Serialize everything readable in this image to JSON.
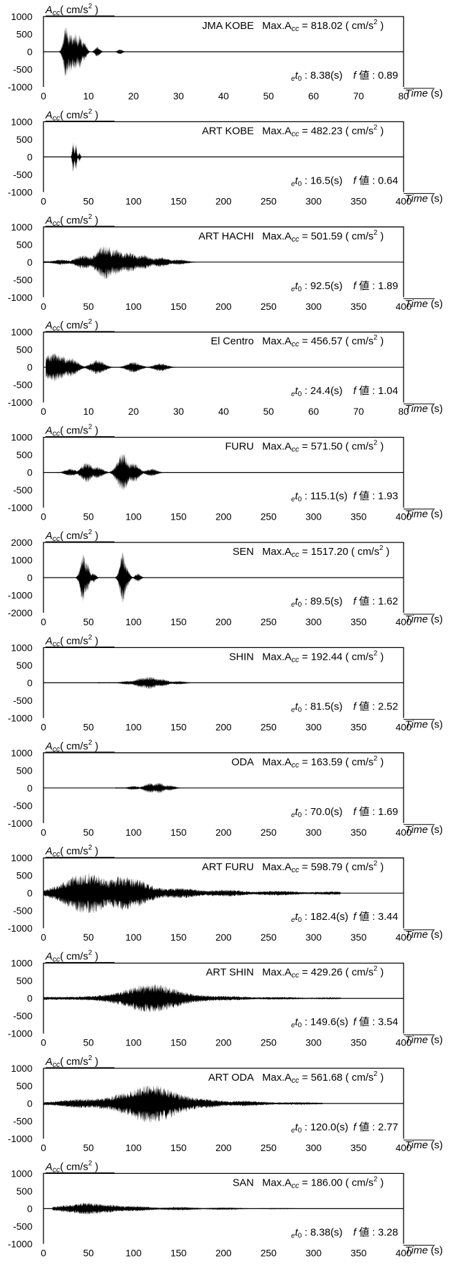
{
  "chart_data": [
    {
      "type": "line",
      "station": "JMA KOBE",
      "max_acc": "818.02",
      "e_t0": "8.38",
      "f_value": "0.89",
      "xlim": [
        0,
        80
      ],
      "ylim": [
        -1000,
        1000
      ],
      "xticks": [
        0,
        10,
        20,
        30,
        40,
        50,
        60,
        70,
        80
      ],
      "yticks": [
        1000,
        500,
        0,
        -500,
        -1000
      ],
      "ylabel_a": "A",
      "ylabel_cc": "cc",
      "ylabel_unit": "( cm/s",
      "unit_exp": "2",
      "unit_close": " )",
      "xlabel_time": "Time",
      "xlabel_unit": "(s)",
      "max_prefix": "Max.A",
      "max_eq": " = ",
      "f_label": "f",
      "f_kanji": "値",
      "t0_e": "e",
      "t0_t": "t",
      "t0_sub": "0",
      "t0_colon": " : ",
      "s_unit": "(s)",
      "envelope": {
        "start": 3.5,
        "end": 22,
        "peaks": [
          [
            5,
            780
          ],
          [
            6,
            600
          ],
          [
            7,
            550
          ],
          [
            8,
            500
          ],
          [
            9,
            300
          ],
          [
            12,
            150
          ],
          [
            17,
            80
          ]
        ],
        "sigma": 0.12,
        "floor": 0.02
      }
    },
    {
      "type": "line",
      "station": "ART KOBE",
      "max_acc": "482.23",
      "e_t0": "16.5",
      "f_value": "0.64",
      "xlim": [
        0,
        400
      ],
      "ylim": [
        -1000,
        1000
      ],
      "xticks": [
        0,
        50,
        100,
        150,
        200,
        250,
        300,
        350,
        400
      ],
      "yticks": [
        1000,
        500,
        0,
        -500,
        -1000
      ],
      "ylabel_a": "A",
      "ylabel_cc": "cc",
      "ylabel_unit": "( cm/s",
      "unit_exp": "2",
      "unit_close": " )",
      "xlabel_time": "Time",
      "xlabel_unit": "(s)",
      "max_prefix": "Max.A",
      "max_eq": " = ",
      "f_label": "f",
      "f_kanji": "値",
      "t0_e": "e",
      "t0_t": "t",
      "t0_sub": "0",
      "t0_colon": " : ",
      "s_unit": "(s)",
      "envelope": {
        "start": 20,
        "end": 70,
        "peaks": [
          [
            33,
            480
          ],
          [
            36,
            400
          ],
          [
            40,
            150
          ]
        ],
        "sigma": 0.08,
        "floor": 0.01
      }
    },
    {
      "type": "line",
      "station": "ART HACHI",
      "max_acc": "501.59",
      "e_t0": "92.5",
      "f_value": "1.89",
      "xlim": [
        0,
        400
      ],
      "ylim": [
        -1000,
        1000
      ],
      "xticks": [
        0,
        50,
        100,
        150,
        200,
        250,
        300,
        350,
        400
      ],
      "yticks": [
        1000,
        500,
        0,
        -500,
        -1000
      ],
      "ylabel_a": "A",
      "ylabel_cc": "cc",
      "ylabel_unit": "( cm/s",
      "unit_exp": "2",
      "unit_close": " )",
      "xlabel_time": "Time",
      "xlabel_unit": "(s)",
      "max_prefix": "Max.A",
      "max_eq": " = ",
      "f_label": "f",
      "f_kanji": "値",
      "t0_e": "e",
      "t0_t": "t",
      "t0_sub": "0",
      "t0_colon": " : ",
      "s_unit": "(s)",
      "envelope": {
        "start": 0,
        "end": 170,
        "peaks": [
          [
            20,
            80
          ],
          [
            45,
            200
          ],
          [
            68,
            500
          ],
          [
            80,
            380
          ],
          [
            95,
            300
          ],
          [
            110,
            220
          ],
          [
            130,
            150
          ],
          [
            150,
            80
          ]
        ],
        "sigma": 0.22,
        "floor": 0.05
      }
    },
    {
      "type": "line",
      "station": "El Centro",
      "max_acc": "456.57",
      "e_t0": "24.4",
      "f_value": "1.04",
      "xlim": [
        0,
        80
      ],
      "ylim": [
        -1000,
        1000
      ],
      "xticks": [
        0,
        10,
        20,
        30,
        40,
        50,
        60,
        70,
        80
      ],
      "yticks": [
        1000,
        500,
        0,
        -500,
        -1000
      ],
      "ylabel_a": "A",
      "ylabel_cc": "cc",
      "ylabel_unit": "( cm/s",
      "unit_exp": "2",
      "unit_close": " )",
      "xlabel_time": "Time",
      "xlabel_unit": "(s)",
      "max_prefix": "Max.A",
      "max_eq": " = ",
      "f_label": "f",
      "f_kanji": "値",
      "t0_e": "e",
      "t0_t": "t",
      "t0_sub": "0",
      "t0_colon": " : ",
      "s_unit": "(s)",
      "envelope": {
        "start": 0.5,
        "end": 33,
        "peaks": [
          [
            1.5,
            400
          ],
          [
            2.5,
            450
          ],
          [
            4,
            330
          ],
          [
            6,
            300
          ],
          [
            12,
            220
          ],
          [
            20,
            160
          ],
          [
            26,
            120
          ]
        ],
        "sigma": 0.18,
        "floor": 0.03
      }
    },
    {
      "type": "line",
      "station": "FURU",
      "max_acc": "571.50",
      "e_t0": "115.1",
      "f_value": "1.93",
      "xlim": [
        0,
        400
      ],
      "ylim": [
        -1000,
        1000
      ],
      "xticks": [
        0,
        50,
        100,
        150,
        200,
        250,
        300,
        350,
        400
      ],
      "yticks": [
        1000,
        500,
        0,
        -500,
        -1000
      ],
      "ylabel_a": "A",
      "ylabel_cc": "cc",
      "ylabel_unit": "( cm/s",
      "unit_exp": "2",
      "unit_close": " )",
      "xlabel_time": "Time",
      "xlabel_unit": "(s)",
      "max_prefix": "Max.A",
      "max_eq": " = ",
      "f_label": "f",
      "f_kanji": "値",
      "t0_e": "e",
      "t0_t": "t",
      "t0_sub": "0",
      "t0_colon": " : ",
      "s_unit": "(s)",
      "envelope": {
        "start": 15,
        "end": 145,
        "peaks": [
          [
            30,
            120
          ],
          [
            48,
            300
          ],
          [
            60,
            180
          ],
          [
            88,
            570
          ],
          [
            100,
            300
          ],
          [
            120,
            120
          ]
        ],
        "sigma": 0.18,
        "floor": 0.03
      }
    },
    {
      "type": "line",
      "station": "SEN",
      "max_acc": "1517.20",
      "e_t0": "89.5",
      "f_value": "1.62",
      "xlim": [
        0,
        400
      ],
      "ylim": [
        -2000,
        2000
      ],
      "xticks": [
        0,
        50,
        100,
        150,
        200,
        250,
        300,
        350,
        400
      ],
      "yticks": [
        2000,
        1000,
        0,
        -1000,
        -2000
      ],
      "ylabel_a": "A",
      "ylabel_cc": "cc",
      "ylabel_unit": "( cm/s",
      "unit_exp": "2",
      "unit_close": " )",
      "xlabel_time": "Time",
      "xlabel_unit": "(s)",
      "max_prefix": "Max.A",
      "max_eq": " = ",
      "f_label": "f",
      "f_kanji": "値",
      "t0_e": "e",
      "t0_t": "t",
      "t0_sub": "0",
      "t0_colon": " : ",
      "s_unit": "(s)",
      "envelope": {
        "start": 20,
        "end": 140,
        "peaks": [
          [
            44,
            1400
          ],
          [
            48,
            900
          ],
          [
            55,
            300
          ],
          [
            88,
            1500
          ],
          [
            92,
            700
          ],
          [
            105,
            250
          ]
        ],
        "sigma": 0.1,
        "floor": 0.015
      }
    },
    {
      "type": "line",
      "station": "SHIN",
      "max_acc": "192.44",
      "e_t0": "81.5",
      "f_value": "2.52",
      "xlim": [
        0,
        400
      ],
      "ylim": [
        -1000,
        1000
      ],
      "xticks": [
        0,
        50,
        100,
        150,
        200,
        250,
        300,
        350,
        400
      ],
      "yticks": [
        1000,
        500,
        0,
        -500,
        -1000
      ],
      "ylabel_a": "A",
      "ylabel_cc": "cc",
      "ylabel_unit": "( cm/s",
      "unit_exp": "2",
      "unit_close": " )",
      "xlabel_time": "Time",
      "xlabel_unit": "(s)",
      "max_prefix": "Max.A",
      "max_eq": " = ",
      "f_label": "f",
      "f_kanji": "値",
      "t0_e": "e",
      "t0_t": "t",
      "t0_sub": "0",
      "t0_colon": " : ",
      "s_unit": "(s)",
      "envelope": {
        "start": 60,
        "end": 170,
        "peaks": [
          [
            95,
            60
          ],
          [
            110,
            150
          ],
          [
            118,
            190
          ],
          [
            130,
            120
          ],
          [
            150,
            50
          ]
        ],
        "sigma": 0.3,
        "floor": 0.03
      }
    },
    {
      "type": "line",
      "station": "ODA",
      "max_acc": "163.59",
      "e_t0": "70.0",
      "f_value": "1.69",
      "xlim": [
        0,
        400
      ],
      "ylim": [
        -1000,
        1000
      ],
      "xticks": [
        0,
        50,
        100,
        150,
        200,
        250,
        300,
        350,
        400
      ],
      "yticks": [
        1000,
        500,
        0,
        -500,
        -1000
      ],
      "ylabel_a": "A",
      "ylabel_cc": "cc",
      "ylabel_unit": "( cm/s",
      "unit_exp": "2",
      "unit_close": " )",
      "xlabel_time": "Time",
      "xlabel_unit": "(s)",
      "max_prefix": "Max.A",
      "max_eq": " = ",
      "f_label": "f",
      "f_kanji": "値",
      "t0_e": "e",
      "t0_t": "t",
      "t0_sub": "0",
      "t0_colon": " : ",
      "s_unit": "(s)",
      "envelope": {
        "start": 80,
        "end": 160,
        "peaks": [
          [
            100,
            60
          ],
          [
            118,
            150
          ],
          [
            128,
            160
          ],
          [
            140,
            80
          ]
        ],
        "sigma": 0.3,
        "floor": 0.03
      }
    },
    {
      "type": "line",
      "station": "ART FURU",
      "max_acc": "598.79",
      "e_t0": "182.4",
      "f_value": "3.44",
      "xlim": [
        0,
        400
      ],
      "ylim": [
        -1000,
        1000
      ],
      "xticks": [
        0,
        50,
        100,
        150,
        200,
        250,
        300,
        350,
        400
      ],
      "yticks": [
        1000,
        500,
        0,
        -500,
        -1000
      ],
      "ylabel_a": "A",
      "ylabel_cc": "cc",
      "ylabel_unit": "( cm/s",
      "unit_exp": "2",
      "unit_close": " )",
      "xlabel_time": "Time",
      "xlabel_unit": "(s)",
      "max_prefix": "Max.A",
      "max_eq": " = ",
      "f_label": "f",
      "f_kanji": "値",
      "t0_e": "e",
      "t0_t": "t",
      "t0_sub": "0",
      "t0_colon": " : ",
      "s_unit": "(s)",
      "envelope": {
        "start": 0,
        "end": 330,
        "peaks": [
          [
            10,
            80
          ],
          [
            30,
            180
          ],
          [
            48,
            590
          ],
          [
            65,
            200
          ],
          [
            90,
            500
          ],
          [
            110,
            220
          ],
          [
            150,
            150
          ],
          [
            200,
            100
          ],
          [
            260,
            70
          ],
          [
            320,
            50
          ]
        ],
        "sigma": 0.3,
        "floor": 0.08
      }
    },
    {
      "type": "line",
      "station": "ART SHIN",
      "max_acc": "429.26",
      "e_t0": "149.6",
      "f_value": "3.54",
      "xlim": [
        0,
        400
      ],
      "ylim": [
        -1000,
        1000
      ],
      "xticks": [
        0,
        50,
        100,
        150,
        200,
        250,
        300,
        350,
        400
      ],
      "yticks": [
        1000,
        500,
        0,
        -500,
        -1000
      ],
      "ylabel_a": "A",
      "ylabel_cc": "cc",
      "ylabel_unit": "( cm/s",
      "unit_exp": "2",
      "unit_close": " )",
      "xlabel_time": "Time",
      "xlabel_unit": "(s)",
      "max_prefix": "Max.A",
      "max_eq": " = ",
      "f_label": "f",
      "f_kanji": "値",
      "t0_e": "e",
      "t0_t": "t",
      "t0_sub": "0",
      "t0_colon": " : ",
      "s_unit": "(s)",
      "envelope": {
        "start": 0,
        "end": 330,
        "peaks": [
          [
            20,
            40
          ],
          [
            60,
            70
          ],
          [
            90,
            150
          ],
          [
            110,
            300
          ],
          [
            120,
            420
          ],
          [
            135,
            250
          ],
          [
            160,
            120
          ],
          [
            200,
            70
          ],
          [
            260,
            40
          ],
          [
            320,
            30
          ]
        ],
        "sigma": 0.35,
        "floor": 0.08
      }
    },
    {
      "type": "line",
      "station": "ART ODA",
      "max_acc": "561.68",
      "e_t0": "120.0",
      "f_value": "2.77",
      "xlim": [
        0,
        400
      ],
      "ylim": [
        -1000,
        1000
      ],
      "xticks": [
        0,
        50,
        100,
        150,
        200,
        250,
        300,
        350,
        400
      ],
      "yticks": [
        1000,
        500,
        0,
        -500,
        -1000
      ],
      "ylabel_a": "A",
      "ylabel_cc": "cc",
      "ylabel_unit": "( cm/s",
      "unit_exp": "2",
      "unit_close": " )",
      "xlabel_time": "Time",
      "xlabel_unit": "(s)",
      "max_prefix": "Max.A",
      "max_eq": " = ",
      "f_label": "f",
      "f_kanji": "値",
      "t0_e": "e",
      "t0_t": "t",
      "t0_sub": "0",
      "t0_colon": " : ",
      "s_unit": "(s)",
      "envelope": {
        "start": 0,
        "end": 310,
        "peaks": [
          [
            15,
            60
          ],
          [
            45,
            140
          ],
          [
            80,
            200
          ],
          [
            105,
            400
          ],
          [
            120,
            560
          ],
          [
            140,
            300
          ],
          [
            170,
            150
          ],
          [
            220,
            80
          ],
          [
            280,
            40
          ]
        ],
        "sigma": 0.35,
        "floor": 0.08
      }
    },
    {
      "type": "line",
      "station": "SAN",
      "max_acc": "186.00",
      "e_t0": "8.38",
      "f_value": "3.28",
      "xlim": [
        0,
        400
      ],
      "ylim": [
        -1000,
        1000
      ],
      "xticks": [
        0,
        50,
        100,
        150,
        200,
        250,
        300,
        350,
        400
      ],
      "yticks": [
        1000,
        500,
        0,
        -500,
        -1000
      ],
      "ylabel_a": "A",
      "ylabel_cc": "cc",
      "ylabel_unit": "( cm/s",
      "unit_exp": "2",
      "unit_close": " )",
      "xlabel_time": "Time",
      "xlabel_unit": "(s)",
      "max_prefix": "Max.A",
      "max_eq": " = ",
      "f_label": "f",
      "f_kanji": "値",
      "t0_e": "e",
      "t0_t": "t",
      "t0_sub": "0",
      "t0_colon": " : ",
      "s_unit": "(s)",
      "envelope": {
        "start": 10,
        "end": 280,
        "peaks": [
          [
            35,
            120
          ],
          [
            50,
            180
          ],
          [
            70,
            120
          ],
          [
            100,
            80
          ],
          [
            150,
            50
          ],
          [
            200,
            35
          ],
          [
            260,
            20
          ]
        ],
        "sigma": 0.3,
        "floor": 0.05
      }
    }
  ]
}
